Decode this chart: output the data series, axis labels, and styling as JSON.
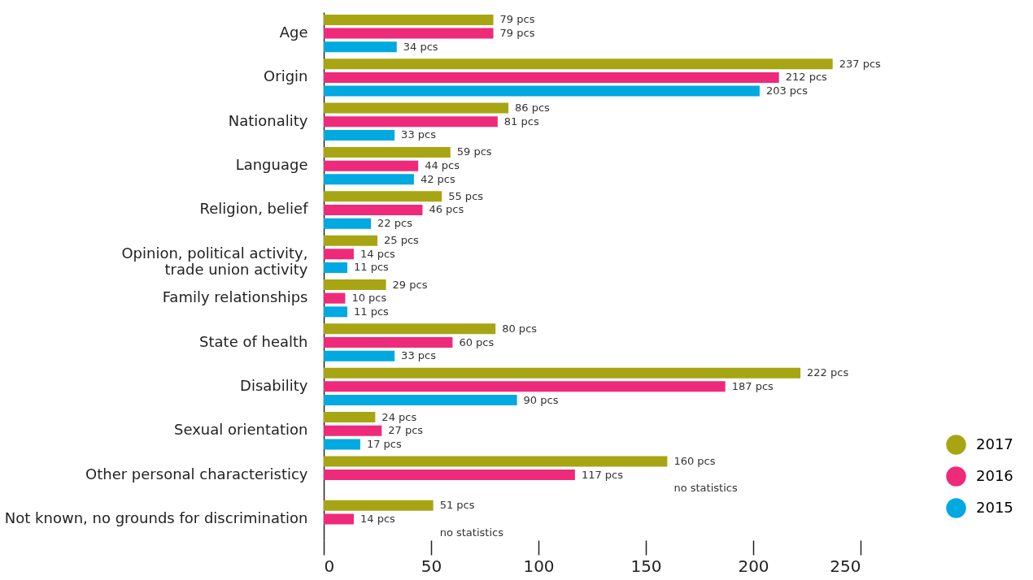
{
  "chart_data": {
    "type": "bar",
    "orientation": "horizontal",
    "categories": [
      "Age",
      "Origin",
      "Nationality",
      "Language",
      "Religion, belief",
      "Opinion, political activity,\ntrade union activity",
      "Family relationships",
      "State of health",
      "Disability",
      "Sexual orientation",
      "Other personal characteristicy",
      "Not known, no grounds for discrimination"
    ],
    "series": [
      {
        "name": "2017",
        "color": "#a8a514",
        "values": [
          79,
          237,
          86,
          59,
          55,
          25,
          29,
          80,
          222,
          24,
          160,
          51
        ],
        "value_labels": [
          "79 pcs",
          "237 pcs",
          "86 pcs",
          "59 pcs",
          "55 pcs",
          "25 pcs",
          "29 pcs",
          "80 pcs",
          "222 pcs",
          "24 pcs",
          "160 pcs",
          "51 pcs"
        ]
      },
      {
        "name": "2016",
        "color": "#ee2a7b",
        "values": [
          79,
          212,
          81,
          44,
          46,
          14,
          10,
          60,
          187,
          27,
          117,
          14
        ],
        "value_labels": [
          "79 pcs",
          "212 pcs",
          "81 pcs",
          "44 pcs",
          "46 pcs",
          "14 pcs",
          "10 pcs",
          "60 pcs",
          "187 pcs",
          "27 pcs",
          "117 pcs",
          "14 pcs"
        ]
      },
      {
        "name": "2015",
        "color": "#00a9e0",
        "values": [
          34,
          203,
          33,
          42,
          22,
          11,
          11,
          33,
          90,
          17,
          null,
          null
        ],
        "value_labels": [
          "34 pcs",
          "203 pcs",
          "33 pcs",
          "42 pcs",
          "22 pcs",
          "11 pcs",
          "11 pcs",
          "33 pcs",
          "90 pcs",
          "17 pcs",
          "no statistics",
          "no statistics"
        ]
      }
    ],
    "xlim": [
      0,
      250
    ],
    "xticks": [
      0,
      50,
      100,
      150,
      200,
      250
    ],
    "grid": false,
    "legend": "bottom right"
  }
}
